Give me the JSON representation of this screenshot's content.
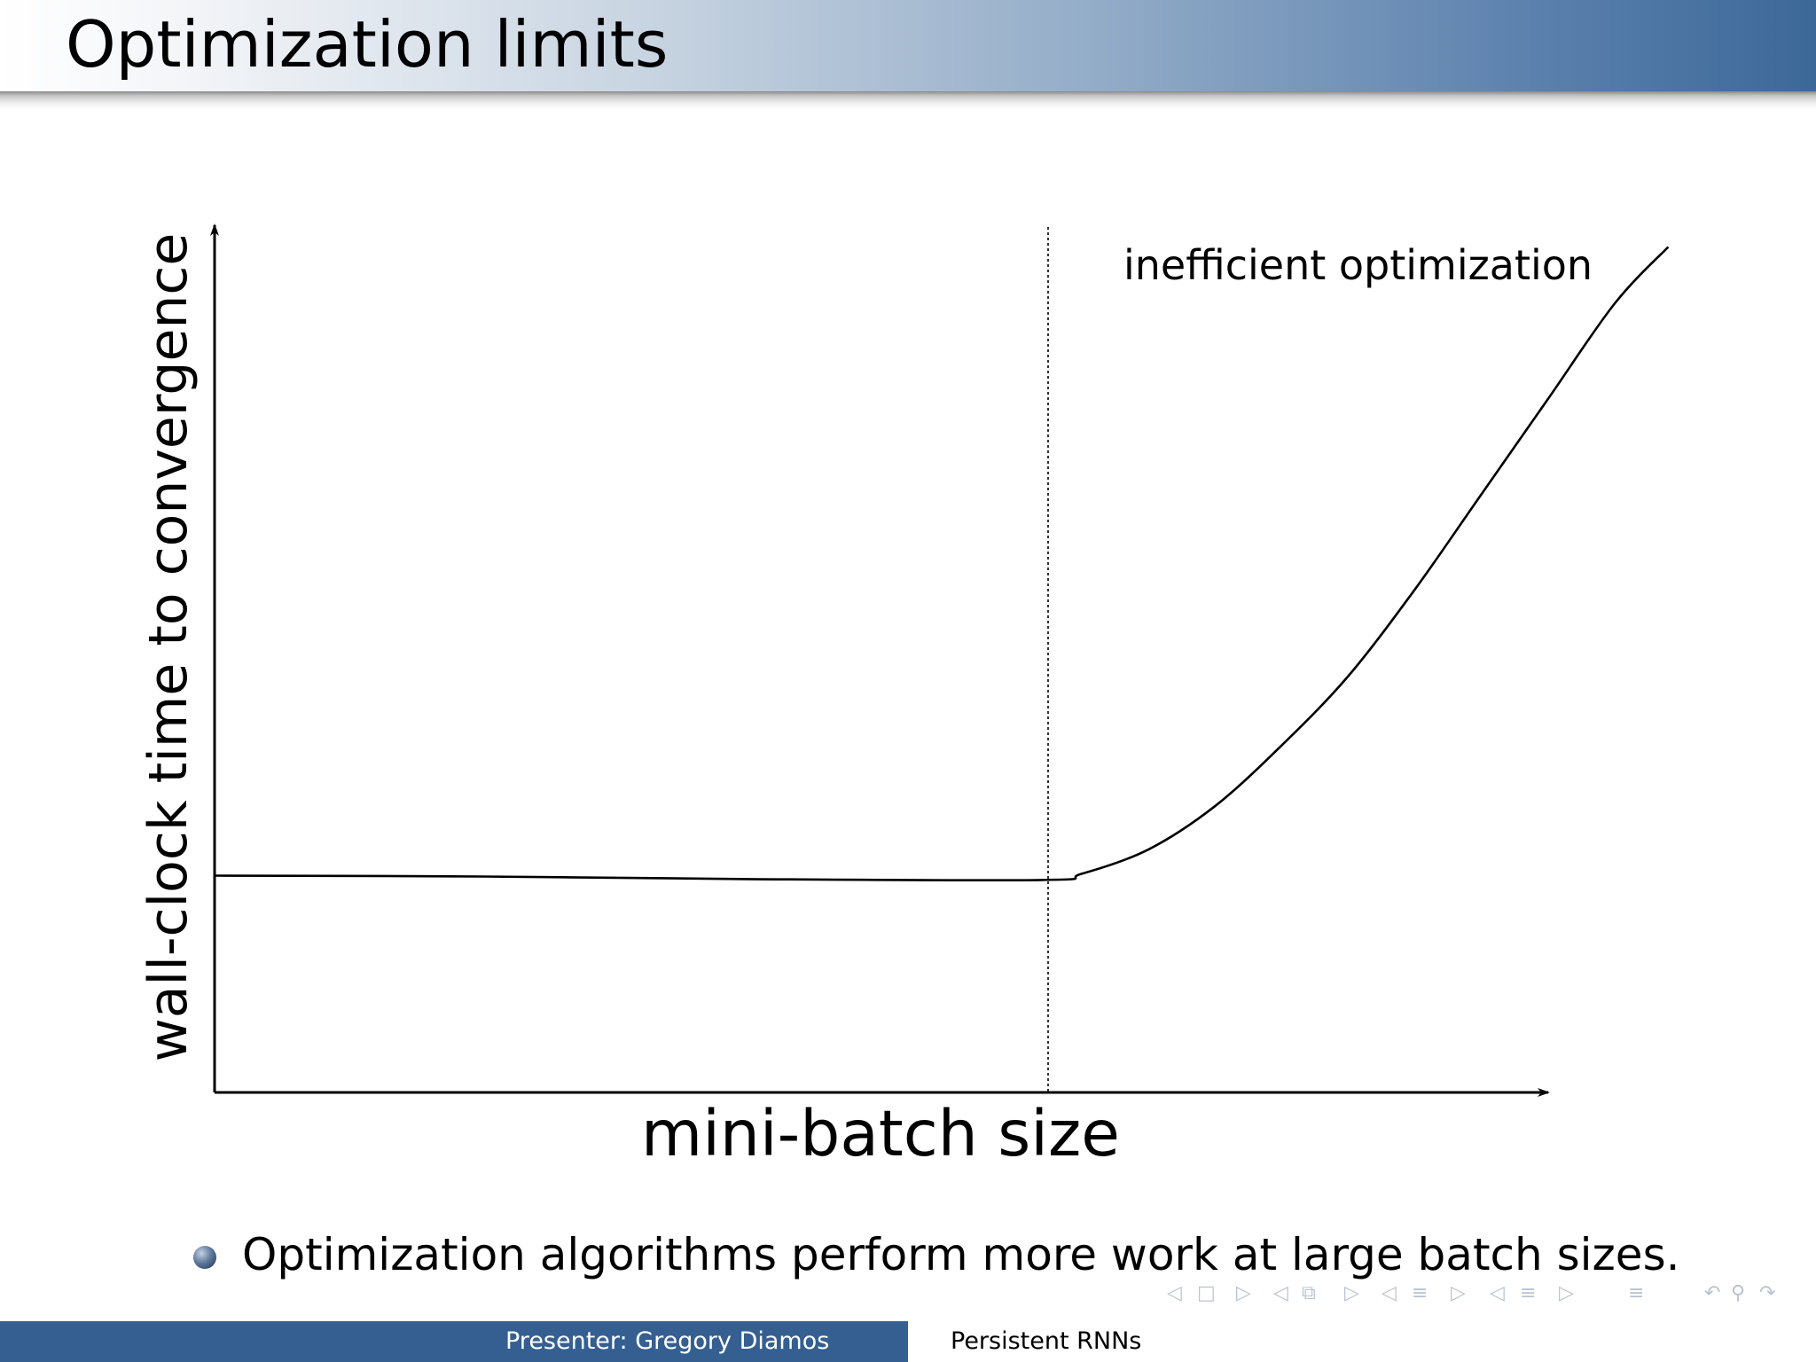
{
  "slide": {
    "title": "Optimization limits",
    "bullet_text": "Optimization algorithms perform more work at large batch sizes."
  },
  "footer": {
    "presenter": "Presenter:  Gregory Diamos",
    "talk_title": "Persistent RNNs"
  },
  "colors": {
    "footer_blue": "#355f91",
    "title_gradient_end": "#3c6898",
    "nav_icon": "#b9c3d0"
  },
  "nav_icons": [
    "prev-frame-icon",
    "frame-icon",
    "next-frame-icon",
    "prev-subsection-icon",
    "subsection-icon",
    "next-subsection-icon",
    "prev-section-icon",
    "section-icon",
    "next-section-icon",
    "prev-appendix-icon",
    "appendix-icon",
    "next-appendix-icon",
    "outline-icon",
    "back-icon",
    "search-icon",
    "forward-icon"
  ],
  "chart_data": {
    "type": "line",
    "title": "",
    "xlabel": "mini-batch size",
    "ylabel": "wall-clock time to convergence",
    "x_ticks": [],
    "y_ticks": [],
    "grid": false,
    "annotations": [
      {
        "text": "inefficient optimization",
        "region": "right of dotted threshold"
      }
    ],
    "threshold_marker": {
      "style": "dotted vertical line",
      "x_fraction_of_axis": 0.62
    },
    "series": [
      {
        "shape": "flat then rising",
        "points_fraction_of_axis": [
          [
            0.0,
            0.25
          ],
          [
            0.2,
            0.249
          ],
          [
            0.4,
            0.246
          ],
          [
            0.62,
            0.245
          ],
          [
            0.65,
            0.252
          ],
          [
            0.7,
            0.28
          ],
          [
            0.75,
            0.33
          ],
          [
            0.8,
            0.4
          ],
          [
            0.85,
            0.48
          ],
          [
            0.9,
            0.58
          ],
          [
            0.95,
            0.69
          ],
          [
            1.0,
            0.8
          ],
          [
            1.05,
            0.91
          ],
          [
            1.09,
            0.975
          ]
        ]
      }
    ]
  }
}
